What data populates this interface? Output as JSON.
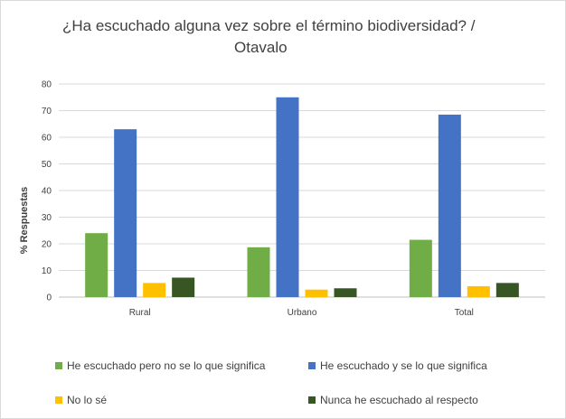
{
  "chart_data": {
    "type": "bar",
    "title_line1": "¿Ha escuchado alguna vez sobre el término biodiversidad? /",
    "title_line2": "Otavalo",
    "ylabel": "% Respuestas",
    "xlabel": "",
    "ylim": [
      0,
      80
    ],
    "yticks": [
      0,
      10,
      20,
      30,
      40,
      50,
      60,
      70,
      80
    ],
    "grid": true,
    "legend_position": "bottom",
    "categories": [
      "Rural",
      "Urbano",
      "Total"
    ],
    "series": [
      {
        "name": "He escuchado pero no se lo que significa",
        "color": "#70ad47",
        "values": [
          24,
          18.7,
          21.5
        ]
      },
      {
        "name": "He escuchado y se lo que significa",
        "color": "#4472c4",
        "values": [
          63,
          75,
          68.5
        ]
      },
      {
        "name": "No lo sé",
        "color": "#ffc000",
        "values": [
          5.3,
          2.8,
          4.1
        ]
      },
      {
        "name": "Nunca he escuchado al respecto",
        "color": "#375623",
        "values": [
          7.3,
          3.3,
          5.3
        ]
      }
    ]
  }
}
